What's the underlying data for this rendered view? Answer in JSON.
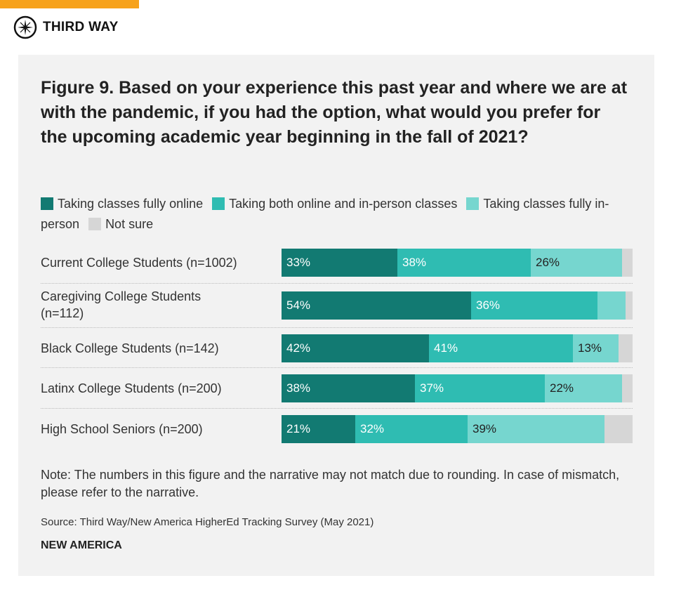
{
  "header": {
    "brand": "THIRD WAY"
  },
  "chart_data": {
    "type": "bar",
    "orientation": "horizontal",
    "stacked": true,
    "title": "Figure 9. Based on your experience this past year and where we are at with the pandemic, if you had the option, what would you prefer for the upcoming academic year beginning in the fall of 2021?",
    "categories": [
      "Current College Students (n=1002)",
      "Caregiving College Students (n=112)",
      "Black College Students (n=142)",
      "Latinx College Students (n=200)",
      "High School Seniors (n=200)"
    ],
    "series": [
      {
        "name": "Taking classes fully online",
        "color": "#127a72",
        "label_color": "#ffffff",
        "values": [
          33,
          54,
          42,
          38,
          21
        ],
        "labels": [
          "33%",
          "54%",
          "42%",
          "38%",
          "21%"
        ]
      },
      {
        "name": "Taking both online and in-person classes",
        "color": "#2fbcb2",
        "label_color": "#ffffff",
        "values": [
          38,
          36,
          41,
          37,
          32
        ],
        "labels": [
          "38%",
          "36%",
          "41%",
          "37%",
          "32%"
        ]
      },
      {
        "name": "Taking classes fully in-person",
        "color": "#76d6cf",
        "label_color": "#222222",
        "values": [
          26,
          8,
          13,
          22,
          39
        ],
        "labels": [
          "26%",
          "",
          "13%",
          "22%",
          "39%"
        ]
      },
      {
        "name": "Not sure",
        "color": "#d6d6d6",
        "label_color": "#222222",
        "values": [
          3,
          2,
          4,
          3,
          8
        ],
        "labels": [
          "",
          "",
          "",
          "",
          ""
        ]
      }
    ],
    "xlim": [
      0,
      100
    ],
    "legend": "top",
    "grid": false,
    "note": "Note: The numbers in this figure and the narrative may not match due to rounding. In case of mismatch, please refer to the narrative.",
    "source": "Source: Third Way/New America HigherEd Tracking Survey (May 2021)",
    "credit": "NEW AMERICA"
  }
}
